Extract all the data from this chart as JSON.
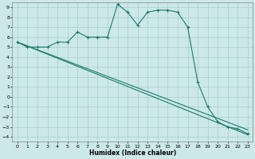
{
  "xlabel": "Humidex (Indice chaleur)",
  "bg_color": "#cce8e8",
  "grid_color": "#aacece",
  "line_color": "#1a7a6e",
  "xlim": [
    -0.5,
    23.5
  ],
  "ylim": [
    -4.5,
    9.5
  ],
  "xticks": [
    0,
    1,
    2,
    3,
    4,
    5,
    6,
    7,
    8,
    9,
    10,
    11,
    12,
    13,
    14,
    15,
    16,
    17,
    18,
    19,
    20,
    21,
    22,
    23
  ],
  "yticks": [
    -4,
    -3,
    -2,
    -1,
    0,
    1,
    2,
    3,
    4,
    5,
    6,
    7,
    8,
    9
  ],
  "line1_x": [
    0,
    1,
    2,
    3,
    4,
    5,
    6,
    7,
    8,
    9,
    10,
    11,
    12,
    13,
    14,
    15,
    16,
    17,
    18,
    19,
    20,
    21,
    22,
    23
  ],
  "line1_y": [
    5.5,
    5.0,
    5.0,
    5.0,
    5.5,
    5.5,
    6.5,
    6.0,
    6.0,
    6.0,
    9.3,
    8.5,
    7.2,
    8.5,
    8.7,
    8.7,
    8.5,
    7.0,
    1.5,
    -1.0,
    -2.5,
    -3.0,
    -3.2,
    -3.7
  ],
  "line2_x": [
    0,
    23
  ],
  "line2_y": [
    5.5,
    -3.8
  ],
  "line3_x": [
    0,
    23
  ],
  "line3_y": [
    5.5,
    -3.3
  ]
}
